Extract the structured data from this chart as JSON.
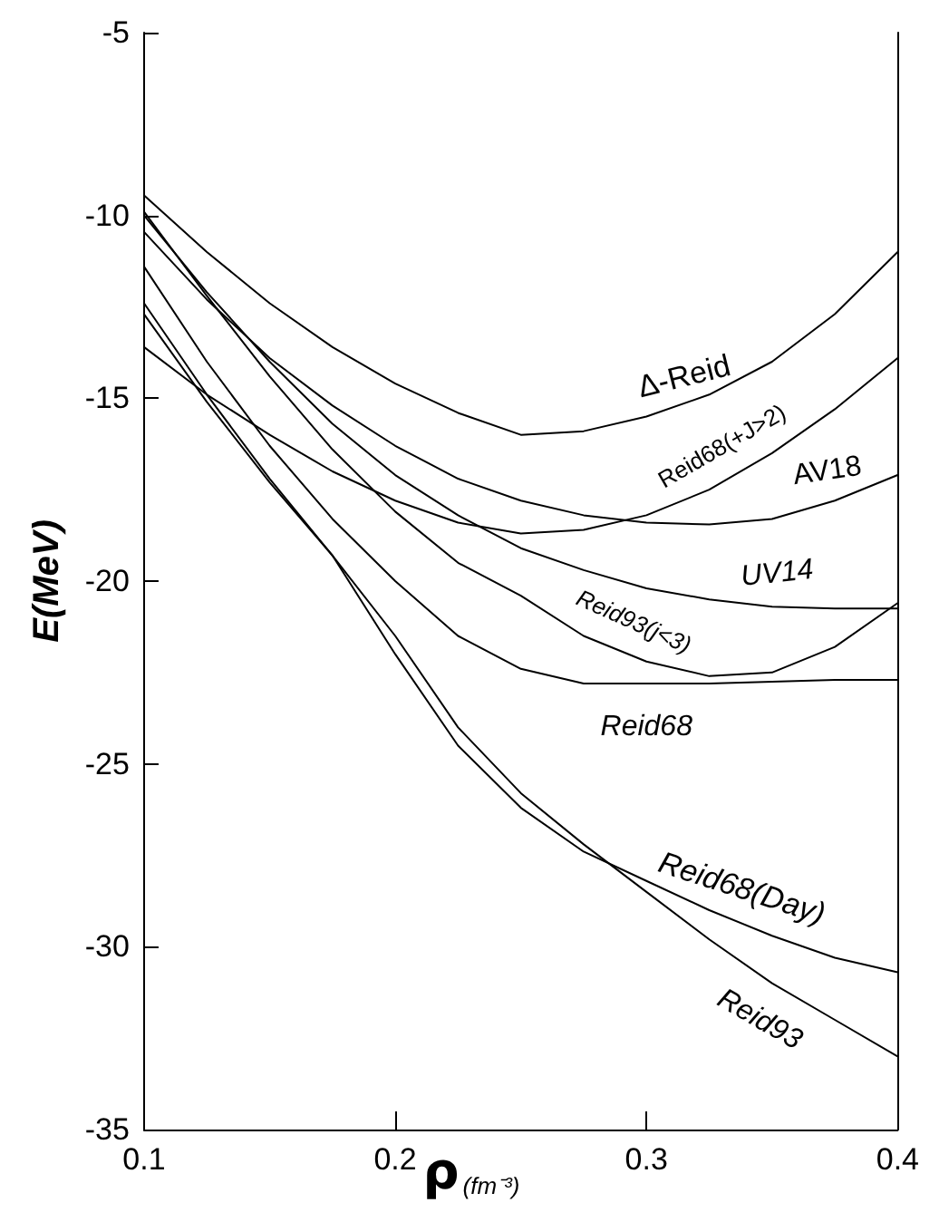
{
  "chart_data": {
    "type": "line",
    "xlabel": "ρ(fm⁻³)",
    "ylabel": "E(MeV)",
    "x": [
      0.1,
      0.125,
      0.15,
      0.175,
      0.2,
      0.225,
      0.25,
      0.275,
      0.3,
      0.325,
      0.35,
      0.375,
      0.4
    ],
    "xlim": [
      0.1,
      0.4
    ],
    "xticks": [
      0.1,
      0.2,
      0.3,
      0.4
    ],
    "ylim": [
      -35,
      -5
    ],
    "yticks": [
      -35,
      -30,
      -25,
      -20,
      -15,
      -10,
      -5
    ],
    "grid": false,
    "legend": false,
    "marker": "none",
    "line_style": "solid",
    "series": [
      {
        "name": "Δ-Reid",
        "color": "#000000",
        "values": [
          -9.45,
          -11.0,
          -12.4,
          -13.6,
          -14.6,
          -15.4,
          -16.0,
          -15.9,
          -15.5,
          -14.9,
          -14.0,
          -12.7,
          -11.0
        ]
      },
      {
        "name": "Reid68(+J>2)",
        "color": "#000000",
        "values": [
          -13.6,
          -14.9,
          -16.0,
          -17.0,
          -17.8,
          -18.4,
          -18.7,
          -18.6,
          -18.2,
          -17.5,
          -16.5,
          -15.3,
          -13.9
        ]
      },
      {
        "name": "AV18",
        "color": "#000000",
        "values": [
          -10.45,
          -12.3,
          -13.9,
          -15.2,
          -16.3,
          -17.2,
          -17.8,
          -18.2,
          -18.4,
          -18.45,
          -18.3,
          -17.8,
          -17.1
        ]
      },
      {
        "name": "UV14",
        "color": "#000000",
        "values": [
          -10.0,
          -12.1,
          -14.0,
          -15.7,
          -17.1,
          -18.2,
          -19.1,
          -19.7,
          -20.2,
          -20.5,
          -20.7,
          -20.75,
          -20.75
        ]
      },
      {
        "name": "Reid93(j<3)",
        "color": "#000000",
        "values": [
          -9.9,
          -12.2,
          -14.4,
          -16.4,
          -18.1,
          -19.5,
          -20.4,
          -21.5,
          -22.2,
          -22.6,
          -22.5,
          -21.8,
          -20.6
        ]
      },
      {
        "name": "Reid68",
        "color": "#000000",
        "values": [
          -11.4,
          -14.0,
          -16.3,
          -18.3,
          -20.0,
          -21.5,
          -22.4,
          -22.8,
          -22.8,
          -22.8,
          -22.75,
          -22.7,
          -22.7
        ]
      },
      {
        "name": "Reid68(Day)",
        "color": "#000000",
        "values": [
          -12.7,
          -15.1,
          -17.3,
          -19.3,
          -22.0,
          -24.5,
          -26.2,
          -27.4,
          -28.2,
          -29.0,
          -29.7,
          -30.3,
          -30.7
        ]
      },
      {
        "name": "Reid93",
        "color": "#000000",
        "values": [
          -12.4,
          -14.9,
          -17.2,
          -19.3,
          -21.5,
          -24.0,
          -25.8,
          -27.2,
          -28.5,
          -29.8,
          -31.0,
          -32.0,
          -33.0
        ]
      }
    ]
  }
}
